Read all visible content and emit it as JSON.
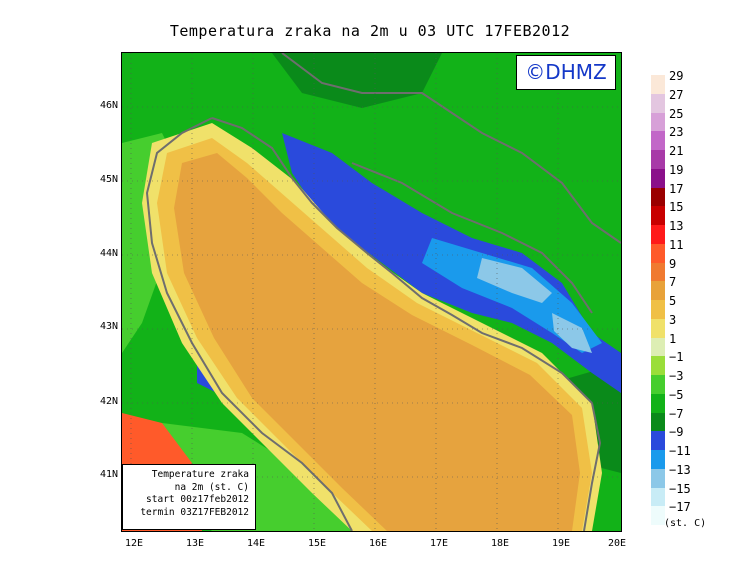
{
  "title": "Temperatura zraka na 2m u 03 UTC 17FEB2012",
  "credit": "©DHMZ",
  "info_box": {
    "line1": "Temperature zraka",
    "line2": "na 2m (st. C)",
    "line3": "start 00z17feb2012",
    "line4": "termin 03Z17FEB2012"
  },
  "axes": {
    "lat_labels": [
      "46N",
      "45N",
      "44N",
      "43N",
      "42N",
      "41N"
    ],
    "lon_labels": [
      "12E",
      "13E",
      "14E",
      "15E",
      "16E",
      "17E",
      "18E",
      "19E",
      "20E"
    ]
  },
  "legend": {
    "unit": "(st. C)",
    "labels": [
      "29",
      "27",
      "25",
      "23",
      "21",
      "19",
      "17",
      "15",
      "13",
      "11",
      "9",
      "7",
      "5",
      "3",
      "1",
      "−1",
      "−3",
      "−5",
      "−7",
      "−9",
      "−11",
      "−13",
      "−15",
      "−17"
    ],
    "colors": [
      "#fbe8d8",
      "#e3c6e0",
      "#d7a0d8",
      "#c267c8",
      "#a83aa8",
      "#8a108a",
      "#9a0000",
      "#c80000",
      "#ff1a1a",
      "#ff5a2a",
      "#f07a30",
      "#e8a23a",
      "#f0c046",
      "#f0e16a",
      "#ddeeb4",
      "#9ade3a",
      "#46ce2e",
      "#12b218",
      "#0a8a1a",
      "#2a4adc",
      "#1a9aec",
      "#8cc8e8",
      "#c8ecf6",
      "#eefcfc"
    ]
  },
  "map_colors": {
    "sea_warm": "#e6a33e",
    "sea_edge": "#f0c046",
    "coast_pale": "#f0e16a",
    "land_green": "#12b218",
    "land_light": "#46ce2e",
    "land_dark": "#0a8a1a",
    "cold_blue": "#2a4adc",
    "cold_cyan": "#1a9aec",
    "cold_pale": "#8cc8e8",
    "warm_red": "#ff5a2a",
    "border": "#6e6e6e"
  }
}
